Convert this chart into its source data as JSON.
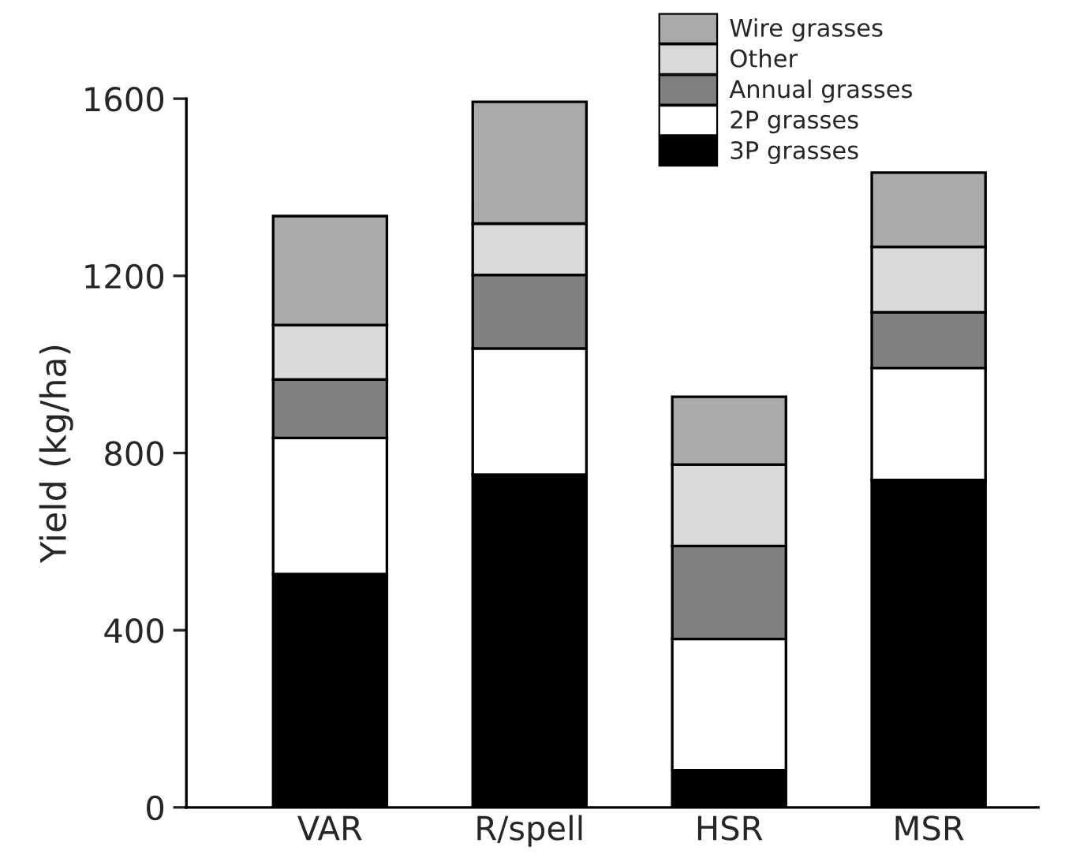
{
  "chart_data": {
    "type": "bar",
    "stacked": true,
    "ylabel": "Yield (kg/ha)",
    "categories": [
      "VAR",
      "R/spell",
      "HSR",
      "MSR"
    ],
    "series": [
      {
        "name": "3P grasses",
        "color": "#000000",
        "values": [
          527,
          751,
          84,
          739
        ]
      },
      {
        "name": "2P grasses",
        "color": "#ffffff",
        "values": [
          307,
          285,
          296,
          253
        ]
      },
      {
        "name": "Annual grasses",
        "color": "#808080",
        "values": [
          132,
          166,
          210,
          126
        ]
      },
      {
        "name": "Other",
        "color": "#d9d9d9",
        "values": [
          123,
          116,
          184,
          147
        ]
      },
      {
        "name": "Wire grasses",
        "color": "#aaaaaa",
        "values": [
          246,
          275,
          153,
          168
        ]
      }
    ],
    "ylim": [
      0,
      1600
    ],
    "yticks": [
      0,
      400,
      800,
      1200,
      1600
    ],
    "grid": false,
    "legend": "top right"
  }
}
